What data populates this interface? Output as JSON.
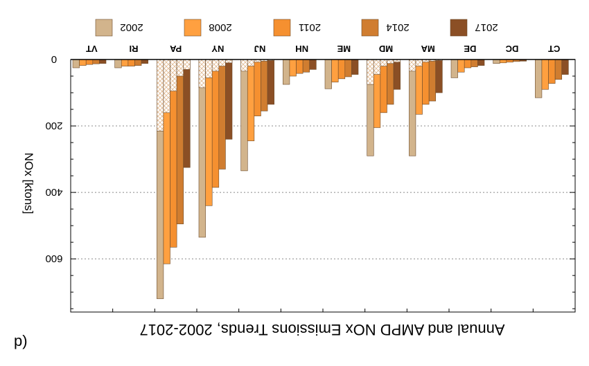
{
  "panel_label": "p)",
  "chart_data": {
    "type": "bar",
    "title": "Annual and AMPD NOx Emissions Trends, 2002-2017",
    "ylabel": "NOx [ktons]",
    "ylim": [
      0,
      760
    ],
    "y_ticks": [
      0,
      200,
      400,
      600
    ],
    "y_tick_labels": [
      "0",
      "200",
      "400",
      "600"
    ],
    "orientation": "inverted-mirrored",
    "categories": [
      "CT",
      "DC",
      "DE",
      "MA",
      "MD",
      "ME",
      "NH",
      "NJ",
      "NY",
      "PA",
      "RI",
      "VT"
    ],
    "category_labels": [
      "CT",
      "DC",
      "DE",
      "MA",
      "MD",
      "ME",
      "NH",
      "NJ",
      "NY",
      "PA",
      "RI",
      "VT"
    ],
    "series": [
      {
        "name": "2002",
        "color": "#d2b48c",
        "values": [
          115,
          12,
          55,
          290,
          290,
          88,
          75,
          335,
          535,
          720,
          25,
          25
        ],
        "ampd": [
          0,
          0,
          0,
          35,
          75,
          0,
          0,
          35,
          85,
          215,
          0,
          0
        ]
      },
      {
        "name": "2008",
        "color": "#ffa040",
        "values": [
          90,
          10,
          38,
          165,
          205,
          68,
          50,
          245,
          440,
          615,
          20,
          18
        ],
        "ampd": [
          0,
          0,
          0,
          20,
          45,
          0,
          0,
          20,
          55,
          160,
          0,
          0
        ]
      },
      {
        "name": "2011",
        "color": "#f59030",
        "values": [
          72,
          8,
          25,
          135,
          160,
          58,
          42,
          170,
          385,
          565,
          20,
          15
        ],
        "ampd": [
          0,
          0,
          0,
          8,
          20,
          0,
          0,
          8,
          35,
          95,
          0,
          0
        ]
      },
      {
        "name": "2014",
        "color": "#d07d30",
        "values": [
          60,
          6,
          22,
          125,
          135,
          52,
          38,
          155,
          330,
          495,
          18,
          13
        ],
        "ampd": [
          0,
          0,
          0,
          5,
          12,
          0,
          0,
          5,
          20,
          50,
          0,
          0
        ]
      },
      {
        "name": "2017",
        "color": "#8b4f25",
        "values": [
          45,
          5,
          18,
          100,
          90,
          45,
          30,
          135,
          240,
          325,
          12,
          12
        ],
        "ampd": [
          0,
          0,
          0,
          3,
          8,
          0,
          0,
          3,
          10,
          30,
          0,
          0
        ]
      }
    ],
    "grid": "horizontal-dotted",
    "legend_position": "top"
  }
}
